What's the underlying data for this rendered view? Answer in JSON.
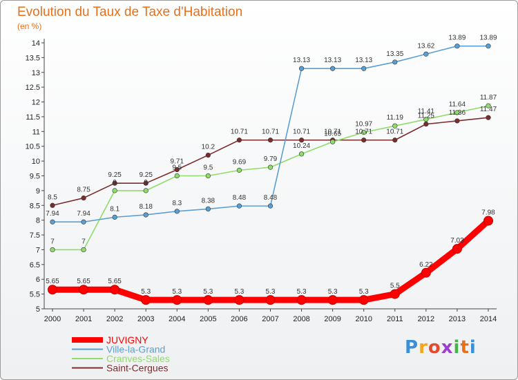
{
  "chart_data": {
    "type": "line",
    "title": "Evolution du Taux de Taxe d'Habitation",
    "subtitle": "(en %)",
    "x": [
      2000,
      2001,
      2002,
      2003,
      2004,
      2005,
      2006,
      2007,
      2008,
      2009,
      2010,
      2011,
      2012,
      2013,
      2014
    ],
    "ylim": [
      5,
      14
    ],
    "yticks": [
      5,
      5.5,
      6,
      6.5,
      7,
      7.5,
      8,
      8.5,
      9,
      9.5,
      10,
      10.5,
      11,
      11.5,
      12,
      12.5,
      13,
      13.5,
      14
    ],
    "grid": false,
    "legend_position": "bottom-left",
    "series": [
      {
        "name": "JUVIGNY",
        "color": "#ff0000",
        "values": [
          5.65,
          5.65,
          5.65,
          5.3,
          5.3,
          5.3,
          5.3,
          5.3,
          5.3,
          5.3,
          5.3,
          5.5,
          6.22,
          7.03,
          7.98
        ]
      },
      {
        "name": "Ville-la-Grand",
        "color": "#5a9fd4",
        "values": [
          7.94,
          7.94,
          8.1,
          8.18,
          8.3,
          8.38,
          8.48,
          8.48,
          13.13,
          13.13,
          13.13,
          13.35,
          13.62,
          13.89,
          13.89
        ]
      },
      {
        "name": "Cranves-Sales",
        "color": "#8fdc6a",
        "values": [
          7,
          7,
          9,
          9,
          9.5,
          9.5,
          9.69,
          9.79,
          10.24,
          10.65,
          10.97,
          11.19,
          11.41,
          11.64,
          11.87
        ]
      },
      {
        "name": "Saint-Cergues",
        "color": "#7a2d2d",
        "values": [
          8.5,
          8.75,
          9.25,
          9.25,
          9.71,
          10.2,
          10.71,
          10.71,
          10.71,
          10.71,
          10.71,
          10.71,
          11.25,
          11.36,
          11.47
        ]
      }
    ],
    "value_labels": [
      {
        "series": 1,
        "labels": [
          "7.94",
          "7.94",
          "8.1",
          "8.18",
          "8.3",
          "8.38",
          "8.48",
          "8.48",
          "13.13",
          "13.13",
          "13.13",
          "13.35",
          "13.62",
          "13.89",
          "13.89"
        ]
      },
      {
        "series": 2,
        "labels": [
          "7",
          "7",
          "9",
          "9",
          "9.5",
          "9.5",
          "9.69",
          "9.79",
          "10.24",
          "10.65",
          "10.97",
          "11.19",
          "11.41",
          "11.64",
          "11.87"
        ]
      },
      {
        "series": 3,
        "labels": [
          "8.5",
          "8.75",
          "9.25",
          "9.25",
          "9.71",
          "10.2",
          "10.71",
          "10.71",
          "10.71",
          "10.71",
          "10.71",
          "10.71",
          "11.25",
          "11.36",
          "11.47"
        ]
      },
      {
        "series": 0,
        "labels": [
          "5.65",
          "5.65",
          "5.65",
          "5.3",
          "5.3",
          "5.3",
          "5.3",
          "5.3",
          "5.3",
          "5.3",
          "5.3",
          "5.5",
          "6.22",
          "7.03",
          "7.98"
        ]
      }
    ]
  },
  "logo": {
    "text": "Proxiti",
    "colors": [
      "#3a8fd9",
      "#f2a51e",
      "#e64a2e",
      "#9c3fd0",
      "#46b34a",
      "#e8701a",
      "#3a8fd9"
    ]
  }
}
